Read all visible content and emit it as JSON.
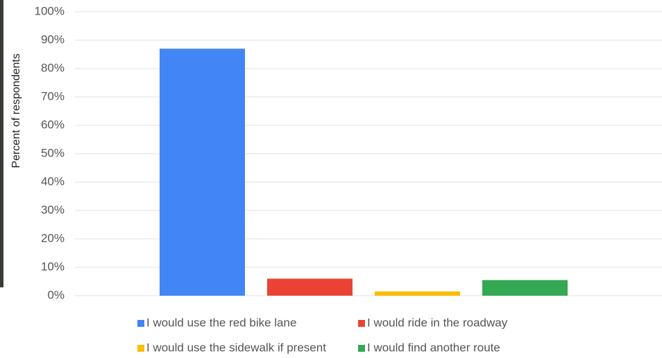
{
  "chart_data": {
    "type": "bar",
    "y_label": "Percent of respondents",
    "categories": [
      null
    ],
    "series": [
      {
        "name": "I would use the red bike lane",
        "color": "#4285f4",
        "values": [
          87
        ]
      },
      {
        "name": "I would ride in the roadway",
        "color": "#ea4335",
        "values": [
          6
        ]
      },
      {
        "name": "I would use the sidewalk if present",
        "color": "#fbbc04",
        "values": [
          1.5
        ]
      },
      {
        "name": "I would find another route",
        "color": "#34a853",
        "values": [
          5.5
        ]
      }
    ],
    "ylim": [
      0,
      100
    ],
    "yticks": [
      {
        "value": 0,
        "label": "0%"
      },
      {
        "value": 10,
        "label": "10%"
      },
      {
        "value": 20,
        "label": "20%"
      },
      {
        "value": 30,
        "label": "30%"
      },
      {
        "value": 40,
        "label": "40%"
      },
      {
        "value": 50,
        "label": "50%"
      },
      {
        "value": 60,
        "label": "60%"
      },
      {
        "value": 70,
        "label": "70%"
      },
      {
        "value": 80,
        "label": "80%"
      },
      {
        "value": 90,
        "label": "90%"
      },
      {
        "value": 100,
        "label": "100%"
      }
    ],
    "grid": true,
    "legend": "bottom"
  }
}
